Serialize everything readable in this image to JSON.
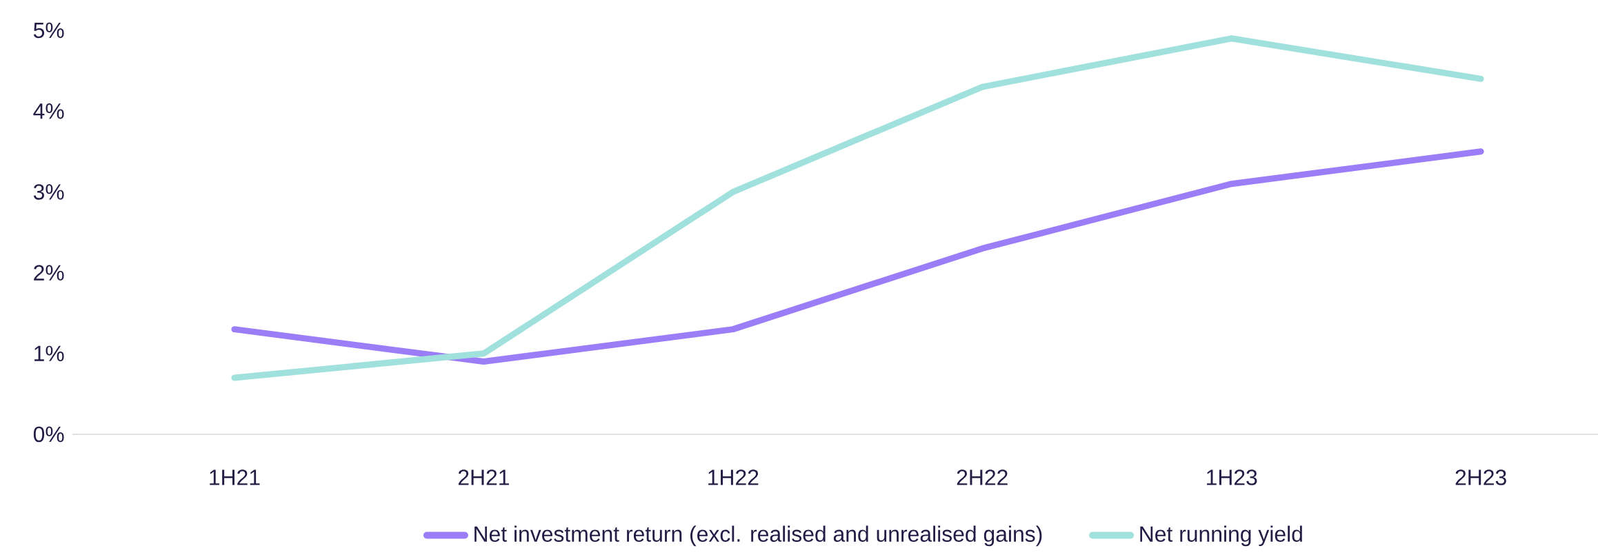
{
  "chart_data": {
    "type": "line",
    "categories": [
      "1H21",
      "2H21",
      "1H22",
      "2H22",
      "1H23",
      "2H23"
    ],
    "series": [
      {
        "name": "Net investment return (excl. realised and unrealised gains)",
        "color": "#9a7df7",
        "values": [
          1.3,
          0.9,
          1.3,
          2.3,
          3.1,
          3.5
        ]
      },
      {
        "name": "Net running yield",
        "color": "#a0e0dd",
        "values": [
          0.7,
          1.0,
          3.0,
          4.3,
          4.9,
          4.4
        ]
      }
    ],
    "ylim": [
      0,
      5
    ],
    "yticks": [
      {
        "value": 0,
        "label": "0%"
      },
      {
        "value": 1,
        "label": "1%"
      },
      {
        "value": 2,
        "label": "2%"
      },
      {
        "value": 3,
        "label": "3%"
      },
      {
        "value": 4,
        "label": "4%"
      },
      {
        "value": 5,
        "label": "5%"
      }
    ],
    "marker": "none",
    "legend": "bottom"
  }
}
